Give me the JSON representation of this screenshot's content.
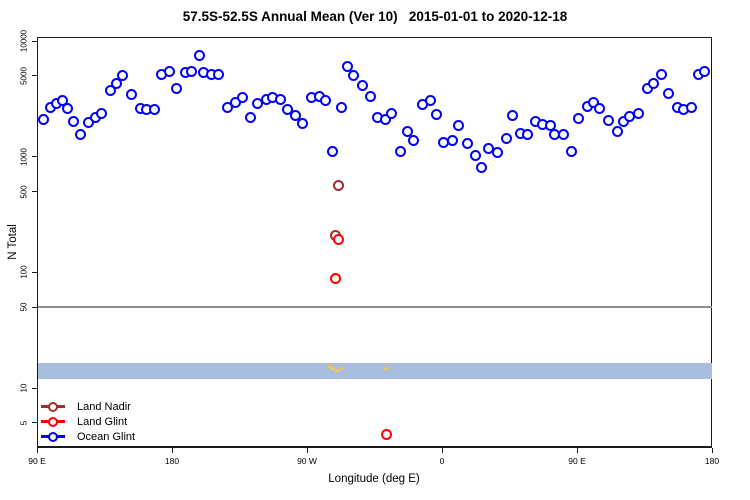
{
  "title": "57.5S-52.5S Annual Mean (Ver 10)   2015-01-01 to 2020-12-18",
  "chart_data": {
    "type": "scatter",
    "title": "57.5S-52.5S Annual Mean (Ver 10)   2015-01-01 to 2020-12-18",
    "xlabel": "Longitude (deg E)",
    "ylabel": "N Total",
    "y_scale": "log",
    "ylim": [
      3,
      11000
    ],
    "x_axis_note": "longitude axis wraps eastward: 90E to 180 to 90W to 0 to 90E to 180 (axis degrees 90-540)",
    "x_ticks": [
      {
        "label": "90 E",
        "deg": 90
      },
      {
        "label": "180",
        "deg": 180
      },
      {
        "label": "90 W",
        "deg": 270
      },
      {
        "label": "0",
        "deg": 360
      },
      {
        "label": "90 E",
        "deg": 450
      },
      {
        "label": "180",
        "deg": 540
      }
    ],
    "y_ticks": [
      {
        "label": "10000",
        "value": 10000
      },
      {
        "label": "5000",
        "value": 5000
      },
      {
        "label": "1000",
        "value": 1000
      },
      {
        "label": "500",
        "value": 500
      },
      {
        "label": "100",
        "value": 100
      },
      {
        "label": "50",
        "value": 50
      },
      {
        "label": "10",
        "value": 10
      },
      {
        "label": "5",
        "value": 5
      }
    ],
    "grid": "off",
    "reference_line": {
      "value": 50,
      "color": "#8c8c8c"
    },
    "band": {
      "from": 12.1,
      "to": 16.6,
      "color": "#a9bedd"
    },
    "legend": {
      "position": "bottom-left",
      "entries": [
        "Land Nadir",
        "Land Glint",
        "Ocean Glint"
      ]
    },
    "series": [
      {
        "name": "Land Nadir",
        "color": "#a52a2a",
        "marker": "open-circle",
        "points": [
          [
            291.3,
            560
          ],
          [
            288.7,
            210
          ]
        ]
      },
      {
        "name": "Land Glint",
        "color": "#ff0000",
        "marker": "open-circle",
        "points": [
          [
            291.3,
            193
          ],
          [
            288.7,
            89
          ],
          [
            323.3,
            4
          ]
        ]
      },
      {
        "name": "Ocean Glint",
        "color": "#0000ff",
        "marker": "open-circle",
        "points": [
          [
            94.0,
            2090
          ],
          [
            99.3,
            2660
          ],
          [
            103.3,
            2890
          ],
          [
            107.3,
            3090
          ],
          [
            110.0,
            2610
          ],
          [
            114.0,
            2010
          ],
          [
            118.7,
            1570
          ],
          [
            124.0,
            1970
          ],
          [
            129.3,
            2180
          ],
          [
            133.3,
            2360
          ],
          [
            138.7,
            3700
          ],
          [
            142.7,
            4250
          ],
          [
            146.7,
            4990
          ],
          [
            153.3,
            3480
          ],
          [
            158.7,
            2610
          ],
          [
            162.7,
            2560
          ],
          [
            168.0,
            2560
          ],
          [
            172.7,
            5090
          ],
          [
            178.0,
            5500
          ],
          [
            183.3,
            3850
          ],
          [
            188.7,
            5290
          ],
          [
            192.7,
            5500
          ],
          [
            198.0,
            7560
          ],
          [
            201.3,
            5290
          ],
          [
            206.0,
            5090
          ],
          [
            210.7,
            5090
          ],
          [
            217.3,
            2660
          ],
          [
            222.0,
            2950
          ],
          [
            226.7,
            3270
          ],
          [
            232.0,
            2180
          ],
          [
            237.3,
            2890
          ],
          [
            242.7,
            3150
          ],
          [
            247.3,
            3270
          ],
          [
            252.0,
            3150
          ],
          [
            256.7,
            2560
          ],
          [
            262.0,
            2270
          ],
          [
            267.3,
            1930
          ],
          [
            272.7,
            3270
          ],
          [
            278.0,
            3330
          ],
          [
            282.0,
            3030
          ],
          [
            286.7,
            1100
          ],
          [
            292.7,
            2660
          ],
          [
            297.3,
            6080
          ],
          [
            301.3,
            4990
          ],
          [
            306.7,
            4160
          ],
          [
            312.0,
            3330
          ],
          [
            316.7,
            2180
          ],
          [
            322.0,
            2090
          ],
          [
            326.0,
            2360
          ],
          [
            332.0,
            1120
          ],
          [
            336.7,
            1640
          ],
          [
            341.3,
            1370
          ],
          [
            347.3,
            2830
          ],
          [
            352.0,
            3090
          ],
          [
            356.0,
            2310
          ],
          [
            361.3,
            1320
          ],
          [
            366.7,
            1370
          ],
          [
            371.3,
            1860
          ],
          [
            376.7,
            1290
          ],
          [
            382.0,
            1030
          ],
          [
            386.0,
            800
          ],
          [
            391.3,
            1170
          ],
          [
            396.7,
            1080
          ],
          [
            403.3,
            1430
          ],
          [
            407.3,
            2270
          ],
          [
            412.0,
            1600
          ],
          [
            416.7,
            1570
          ],
          [
            422.0,
            2010
          ],
          [
            427.3,
            1890
          ],
          [
            432.0,
            1860
          ],
          [
            435.3,
            1570
          ],
          [
            440.7,
            1570
          ],
          [
            446.0,
            1120
          ],
          [
            451.3,
            2130
          ],
          [
            456.7,
            2720
          ],
          [
            461.3,
            2950
          ],
          [
            465.3,
            2610
          ],
          [
            471.3,
            2050
          ],
          [
            476.7,
            1640
          ],
          [
            480.7,
            2010
          ],
          [
            484.7,
            2220
          ],
          [
            490.7,
            2360
          ],
          [
            496.7,
            3850
          ],
          [
            500.7,
            4250
          ],
          [
            506.0,
            5090
          ],
          [
            511.3,
            3550
          ],
          [
            516.7,
            2660
          ],
          [
            521.3,
            2560
          ],
          [
            526.0,
            2660
          ],
          [
            531.3,
            5180
          ],
          [
            535.3,
            5500
          ]
        ]
      },
      {
        "name": "band marks (unlabeled)",
        "color": "#f2c45f",
        "marker": "small-dash",
        "in_legend": false,
        "points": [
          [
            284.7,
            15.3
          ],
          [
            287.3,
            14.8
          ],
          [
            290.0,
            14.2
          ],
          [
            292.7,
            14.7
          ],
          [
            323.3,
            14.8
          ]
        ]
      }
    ]
  }
}
